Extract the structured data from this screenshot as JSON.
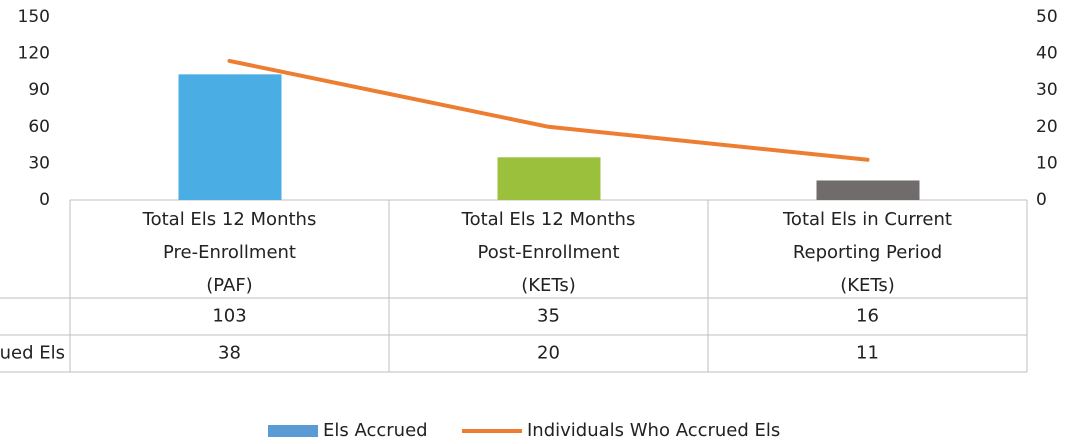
{
  "chart_data": {
    "type": "bar-line",
    "categories": [
      [
        "Total Els 12 Months",
        "Pre-Enrollment",
        "(PAF)"
      ],
      [
        "Total Els 12 Months",
        "Post-Enrollment",
        "(KETs)"
      ],
      [
        "Total Els in Current",
        "Reporting Period",
        "(KETs)"
      ]
    ],
    "series": [
      {
        "name": "Els Accrued",
        "type": "bar",
        "colors": [
          "#4aaee4",
          "#9bc13c",
          "#6f6c6b"
        ],
        "legend_color": "#5b9bd5",
        "values": [
          103,
          35,
          16
        ]
      },
      {
        "name": "Individuals Who Accrued Els",
        "type": "line",
        "axis": "y2",
        "color": "#ed7d31",
        "values": [
          38,
          20,
          11
        ]
      }
    ],
    "ylim": [
      0,
      150
    ],
    "yticks": [
      0,
      30,
      60,
      90,
      120,
      150
    ],
    "y2lim": [
      0,
      50
    ],
    "y2ticks": [
      0,
      10,
      20,
      30,
      40,
      50
    ],
    "legend": "bottom"
  }
}
